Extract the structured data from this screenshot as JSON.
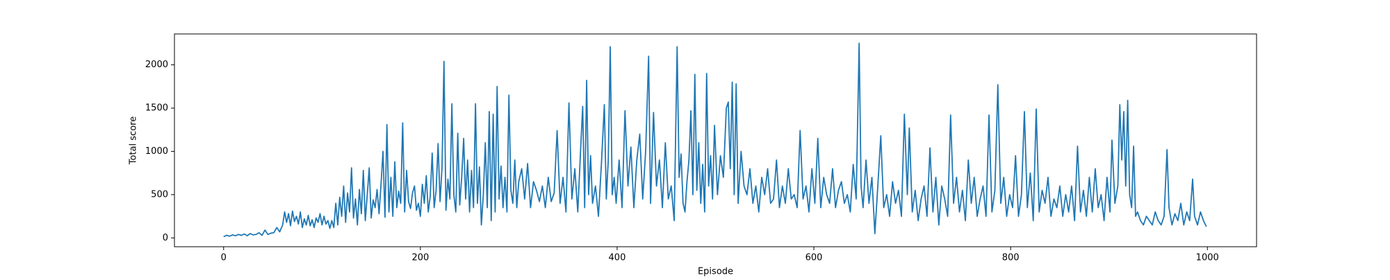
{
  "chart_data": {
    "type": "line",
    "x_label": "Episode",
    "y_label": "Total score",
    "color": "#1f77b4",
    "xlim": [
      -50,
      1050
    ],
    "ylim": [
      -102,
      2357
    ],
    "xticks": [
      0,
      200,
      400,
      600,
      800,
      1000
    ],
    "yticks": [
      0,
      500,
      1000,
      1500,
      2000
    ],
    "x": [
      0,
      3,
      6,
      9,
      12,
      15,
      18,
      21,
      24,
      27,
      30,
      33,
      36,
      39,
      42,
      45,
      48,
      51,
      54,
      57,
      60,
      62,
      64,
      66,
      68,
      70,
      72,
      74,
      76,
      78,
      80,
      82,
      84,
      86,
      88,
      90,
      92,
      94,
      96,
      98,
      100,
      102,
      104,
      106,
      108,
      110,
      112,
      114,
      116,
      118,
      120,
      122,
      124,
      126,
      128,
      130,
      132,
      134,
      136,
      138,
      140,
      142,
      144,
      146,
      148,
      150,
      152,
      154,
      156,
      158,
      160,
      162,
      164,
      166,
      168,
      170,
      172,
      174,
      176,
      178,
      180,
      182,
      184,
      186,
      188,
      190,
      192,
      194,
      196,
      198,
      200,
      202,
      204,
      206,
      208,
      210,
      212,
      214,
      216,
      218,
      220,
      222,
      224,
      226,
      228,
      230,
      232,
      234,
      236,
      238,
      240,
      242,
      244,
      246,
      248,
      250,
      252,
      254,
      256,
      258,
      260,
      262,
      264,
      266,
      268,
      270,
      272,
      274,
      276,
      278,
      280,
      282,
      284,
      286,
      288,
      290,
      292,
      294,
      296,
      298,
      300,
      303,
      306,
      309,
      312,
      315,
      318,
      321,
      324,
      327,
      330,
      333,
      336,
      339,
      342,
      345,
      348,
      351,
      354,
      357,
      360,
      363,
      365,
      367,
      369,
      371,
      373,
      375,
      378,
      381,
      384,
      387,
      389,
      391,
      393,
      395,
      397,
      399,
      402,
      405,
      408,
      411,
      414,
      417,
      420,
      423,
      426,
      429,
      432,
      434,
      437,
      440,
      443,
      446,
      449,
      452,
      455,
      458,
      461,
      463,
      465,
      467,
      469,
      471,
      473,
      475,
      477,
      479,
      481,
      483,
      485,
      487,
      489,
      491,
      493,
      495,
      497,
      499,
      502,
      505,
      508,
      511,
      513,
      515,
      517,
      519,
      521,
      523,
      526,
      529,
      532,
      535,
      538,
      541,
      544,
      547,
      550,
      553,
      556,
      559,
      562,
      565,
      568,
      571,
      574,
      577,
      580,
      583,
      586,
      589,
      592,
      595,
      598,
      601,
      604,
      607,
      610,
      613,
      616,
      619,
      622,
      625,
      628,
      631,
      634,
      637,
      640,
      643,
      646,
      648,
      650,
      653,
      656,
      659,
      662,
      665,
      668,
      671,
      674,
      677,
      680,
      683,
      686,
      689,
      692,
      695,
      697,
      700,
      703,
      706,
      709,
      712,
      715,
      718,
      721,
      724,
      727,
      730,
      733,
      736,
      739,
      742,
      745,
      748,
      751,
      754,
      757,
      760,
      763,
      766,
      769,
      772,
      775,
      778,
      781,
      784,
      787,
      790,
      793,
      796,
      799,
      802,
      805,
      808,
      811,
      814,
      817,
      820,
      823,
      826,
      829,
      832,
      835,
      838,
      841,
      844,
      847,
      850,
      853,
      856,
      859,
      862,
      865,
      868,
      871,
      874,
      877,
      880,
      883,
      886,
      889,
      892,
      895,
      898,
      901,
      903,
      906,
      909,
      911,
      913,
      915,
      917,
      919,
      921,
      923,
      925,
      927,
      929,
      932,
      935,
      938,
      941,
      944,
      947,
      950,
      953,
      956,
      959,
      961,
      964,
      967,
      970,
      973,
      976,
      979,
      982,
      985,
      987,
      990,
      993,
      996,
      999
    ],
    "values": [
      15,
      30,
      20,
      35,
      25,
      40,
      30,
      45,
      25,
      50,
      35,
      40,
      60,
      30,
      90,
      40,
      55,
      60,
      120,
      70,
      150,
      300,
      180,
      280,
      140,
      310,
      190,
      250,
      160,
      300,
      120,
      220,
      150,
      260,
      140,
      210,
      120,
      230,
      180,
      280,
      150,
      250,
      160,
      200,
      110,
      200,
      120,
      400,
      150,
      470,
      250,
      600,
      180,
      520,
      300,
      810,
      230,
      450,
      150,
      560,
      280,
      780,
      200,
      500,
      810,
      230,
      440,
      350,
      560,
      280,
      620,
      1000,
      240,
      1310,
      300,
      700,
      250,
      880,
      350,
      540,
      400,
      1330,
      300,
      780,
      420,
      340,
      520,
      600,
      320,
      400,
      250,
      620,
      400,
      720,
      300,
      480,
      980,
      350,
      550,
      1090,
      420,
      820,
      2040,
      320,
      680,
      450,
      1550,
      500,
      300,
      1210,
      380,
      700,
      1150,
      450,
      900,
      300,
      780,
      350,
      1550,
      400,
      820,
      150,
      500,
      1100,
      350,
      1460,
      200,
      1430,
      300,
      1750,
      450,
      830,
      350,
      700,
      300,
      1650,
      550,
      400,
      900,
      350,
      650,
      800,
      450,
      860,
      350,
      650,
      550,
      420,
      600,
      350,
      700,
      420,
      520,
      1240,
      400,
      700,
      300,
      1560,
      450,
      800,
      300,
      1050,
      1520,
      350,
      1820,
      500,
      950,
      400,
      600,
      250,
      850,
      1540,
      450,
      900,
      2210,
      500,
      700,
      400,
      900,
      350,
      1470,
      600,
      1050,
      350,
      900,
      1200,
      450,
      1000,
      2100,
      400,
      1450,
      600,
      900,
      350,
      1100,
      450,
      600,
      200,
      2210,
      700,
      970,
      400,
      300,
      650,
      900,
      1470,
      500,
      1890,
      550,
      1100,
      400,
      850,
      300,
      1900,
      600,
      950,
      450,
      1300,
      500,
      950,
      700,
      1500,
      1570,
      800,
      1800,
      500,
      1780,
      400,
      1000,
      600,
      500,
      800,
      400,
      600,
      300,
      700,
      500,
      800,
      400,
      450,
      900,
      350,
      600,
      400,
      800,
      450,
      500,
      350,
      1240,
      450,
      600,
      300,
      800,
      400,
      1150,
      350,
      700,
      500,
      400,
      800,
      350,
      550,
      650,
      400,
      500,
      300,
      850,
      450,
      2250,
      600,
      350,
      900,
      400,
      700,
      50,
      600,
      1180,
      350,
      500,
      250,
      650,
      400,
      550,
      250,
      1430,
      500,
      1270,
      300,
      550,
      200,
      450,
      600,
      250,
      1040,
      300,
      700,
      150,
      600,
      450,
      250,
      1420,
      400,
      700,
      300,
      550,
      200,
      900,
      400,
      700,
      250,
      450,
      600,
      250,
      1420,
      300,
      550,
      1770,
      400,
      700,
      250,
      500,
      350,
      950,
      250,
      500,
      1460,
      350,
      750,
      200,
      1490,
      300,
      550,
      400,
      700,
      250,
      450,
      350,
      600,
      250,
      500,
      300,
      600,
      200,
      1060,
      300,
      550,
      250,
      700,
      300,
      800,
      350,
      500,
      200,
      700,
      300,
      1130,
      400,
      600,
      1540,
      900,
      1460,
      600,
      1590,
      500,
      350,
      1060,
      250,
      300,
      200,
      150,
      250,
      200,
      150,
      300,
      200,
      150,
      250,
      1020,
      350,
      150,
      280,
      200,
      400,
      150,
      300,
      200,
      680,
      250,
      150,
      300,
      200,
      130
    ]
  }
}
